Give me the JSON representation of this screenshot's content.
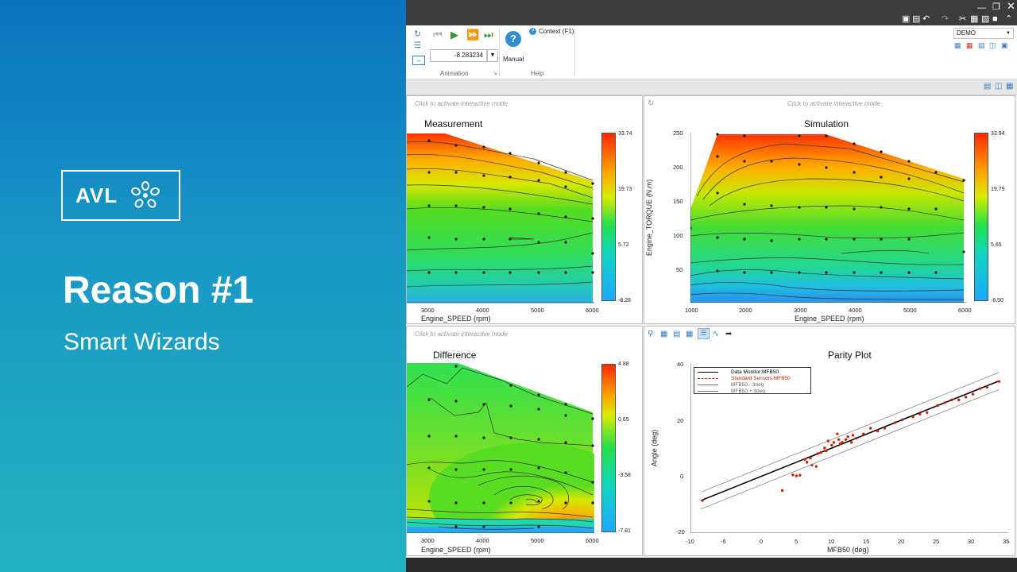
{
  "slide": {
    "logo_text": "AVL",
    "title": "Reason #1",
    "subtitle": "Smart Wizards"
  },
  "ribbon": {
    "animation_value": "-8.283234",
    "animation_group": "Animation",
    "help_group": "Help",
    "context_label": "Context (F1)",
    "manual_label": "Manual",
    "profile_value": "DEMO"
  },
  "panels": {
    "measurement": {
      "hint": "Click to activate interactive mode",
      "title": "Measurement",
      "xlabel": "Engine_SPEED (rpm)",
      "xticks": [
        "3000",
        "4000",
        "5000",
        "6000"
      ],
      "colorbar": [
        "33.74",
        "19.73",
        "5.72",
        "-8.28"
      ]
    },
    "simulation": {
      "hint": "Click to activate interactive mode",
      "title": "Simulation",
      "xlabel": "Engine_SPEED (rpm)",
      "ylabel": "Engine_TORQUE (N.m)",
      "xticks": [
        "1000",
        "2000",
        "3000",
        "4000",
        "5000",
        "6000"
      ],
      "yticks": [
        "250",
        "200",
        "150",
        "100",
        "50"
      ],
      "colorbar": [
        "33.94",
        "19.79",
        "5.65",
        "-8.50"
      ]
    },
    "difference": {
      "hint": "Click to activate interactive mode",
      "title": "Difference",
      "xlabel": "Engine_SPEED (rpm)",
      "xticks": [
        "3000",
        "4000",
        "5000",
        "6000"
      ],
      "colorbar": [
        "4.88",
        "0.65",
        "-3.58",
        "-7.81"
      ]
    },
    "parity": {
      "title": "Parity Plot",
      "xlabel": "MFB50 (deg)",
      "ylabel": "Angle (deg)",
      "xticks": [
        "-10",
        "-5",
        "0",
        "5",
        "10",
        "15",
        "20",
        "25",
        "30",
        "35"
      ],
      "yticks": [
        "40",
        "20",
        "0",
        "-20"
      ],
      "legend": [
        "Data Monitor:MFB50",
        "Standard Sensors:MFB50",
        "MFB50 - 3deg",
        "MFB50 + 3deg"
      ]
    }
  },
  "chart_data": {
    "type": "scatter",
    "title": "Parity Plot",
    "xlabel": "MFB50 (deg)",
    "ylabel": "Angle (deg)",
    "xlim": [
      -10,
      35
    ],
    "ylim": [
      -20,
      40
    ],
    "series": [
      {
        "name": "Data Monitor:MFB50",
        "type": "line",
        "x": [
          -8.5,
          33.7
        ],
        "y": [
          -8.5,
          33.7
        ],
        "color": "#000000"
      },
      {
        "name": "Standard Sensors:MFB50",
        "type": "scatter",
        "color": "#cc2200",
        "x": [
          -8.3,
          3,
          4.5,
          5,
          5.5,
          6.2,
          6.5,
          7,
          7.2,
          7.8,
          8,
          8.5,
          9,
          9.2,
          9.5,
          10,
          10.3,
          10.8,
          11,
          11.2,
          11.5,
          12,
          12.3,
          12.8,
          13,
          13.5,
          14.5,
          15.5,
          16.5,
          17.5,
          19,
          20,
          21.5,
          22.5,
          23.5,
          25,
          26,
          27,
          28,
          29,
          30,
          31,
          32,
          33.7
        ],
        "y": [
          -8.5,
          -5,
          0.5,
          0.2,
          0.4,
          6,
          5,
          6.5,
          4,
          3.5,
          8,
          8.5,
          10,
          9,
          12.5,
          11,
          12,
          15,
          13,
          11.5,
          12,
          13,
          14,
          12,
          14.5,
          13.5,
          15,
          17,
          16,
          17,
          19,
          20,
          21,
          22,
          22.5,
          25,
          26,
          27,
          27,
          28,
          29,
          31,
          31.5,
          33.5
        ]
      },
      {
        "name": "MFB50 - 3deg",
        "type": "line",
        "x": [
          -8.5,
          33.7
        ],
        "y": [
          -11.5,
          30.7
        ],
        "color": "#777777"
      },
      {
        "name": "MFB50 + 3deg",
        "type": "line",
        "x": [
          -8.5,
          33.7
        ],
        "y": [
          -5.5,
          36.7
        ],
        "color": "#777777"
      }
    ]
  }
}
